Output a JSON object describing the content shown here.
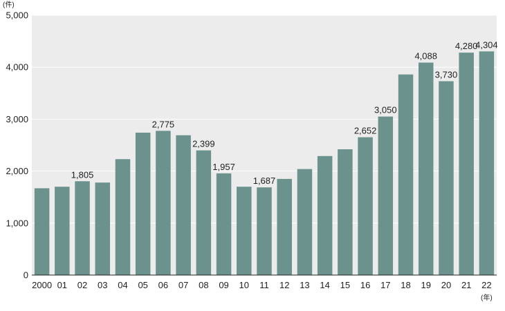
{
  "chart_data": {
    "type": "bar",
    "y_unit": "(件)",
    "x_unit": "(年)",
    "categories": [
      "2000",
      "01",
      "02",
      "03",
      "04",
      "05",
      "06",
      "07",
      "08",
      "09",
      "10",
      "11",
      "12",
      "13",
      "14",
      "15",
      "16",
      "17",
      "18",
      "19",
      "20",
      "21",
      "22"
    ],
    "values": [
      1670,
      1700,
      1805,
      1780,
      2230,
      2740,
      2775,
      2690,
      2399,
      1957,
      1700,
      1687,
      1850,
      2040,
      2290,
      2420,
      2652,
      3050,
      3860,
      4088,
      3730,
      4280,
      4304
    ],
    "data_labels": [
      {
        "category": "02",
        "text": "1,805"
      },
      {
        "category": "06",
        "text": "2,775"
      },
      {
        "category": "08",
        "text": "2,399"
      },
      {
        "category": "09",
        "text": "1,957"
      },
      {
        "category": "11",
        "text": "1,687"
      },
      {
        "category": "16",
        "text": "2,652"
      },
      {
        "category": "17",
        "text": "3,050"
      },
      {
        "category": "19",
        "text": "4,088"
      },
      {
        "category": "20",
        "text": "3,730"
      },
      {
        "category": "21",
        "text": "4,280"
      },
      {
        "category": "22",
        "text": "4,304"
      }
    ],
    "ylim": [
      0,
      5000
    ],
    "yticks": [
      0,
      1000,
      2000,
      3000,
      4000,
      5000
    ],
    "ytick_labels": [
      "0",
      "1,000",
      "2,000",
      "3,000",
      "4,000",
      "5,000"
    ],
    "grid": true,
    "colors": {
      "bar": "#6b928c",
      "plot_background": "#ececec",
      "grid": "#ffffff"
    }
  }
}
